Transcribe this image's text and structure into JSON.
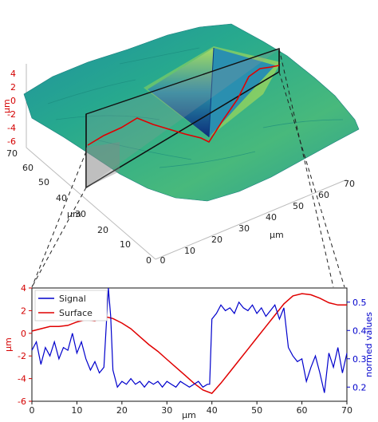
{
  "chart_data": [
    {
      "type": "surface",
      "z_axis": {
        "label": "µm",
        "ticks": [
          "4",
          "2",
          "0",
          "-2",
          "-4",
          "-6"
        ],
        "color": "#d40000"
      },
      "y_axis": {
        "ticks": [
          "70",
          "60",
          "50",
          "40",
          "30",
          "20",
          "10",
          "0"
        ]
      },
      "y_label": "µm",
      "x_axis": {
        "label": "µm",
        "ticks": [
          "0",
          "10",
          "20",
          "30",
          "40",
          "50",
          "60",
          "70"
        ]
      },
      "colormap": [
        "#0b2f7a",
        "#1d6aa6",
        "#15a39a",
        "#56c27a",
        "#c8e64a"
      ],
      "cut_line_color": "#e00000"
    },
    {
      "type": "line",
      "xlabel": "µm",
      "ylabel_left": "µm",
      "ylabel_right": "normed values",
      "xlim": [
        0,
        70
      ],
      "ylim_left": [
        -6,
        4
      ],
      "ylim_right": [
        0.15,
        0.55
      ],
      "x_ticks": [
        "0",
        "10",
        "20",
        "30",
        "40",
        "50",
        "60",
        "70"
      ],
      "y_ticks_left": [
        "4",
        "2",
        "0",
        "-2",
        "-4",
        "-6"
      ],
      "y_ticks_right": [
        "0.5",
        "0.4",
        "0.3",
        "0.2"
      ],
      "legend_position": "upper-left",
      "series": [
        {
          "name": "Signal",
          "color": "#0000cc",
          "axis": "right",
          "x": [
            0,
            1,
            2,
            3,
            4,
            5,
            6,
            7,
            8,
            9,
            10,
            11,
            12,
            13,
            14,
            15,
            16,
            17,
            17.5,
            18,
            19,
            20,
            21,
            22,
            23,
            24,
            25,
            26,
            27,
            28,
            29,
            30,
            31,
            32,
            33,
            34,
            35,
            36,
            37,
            38,
            39,
            39.5,
            40,
            41,
            42,
            43,
            44,
            45,
            46,
            47,
            48,
            49,
            50,
            51,
            52,
            53,
            54,
            55,
            56,
            57,
            58,
            59,
            60,
            61,
            62,
            63,
            64,
            65,
            66,
            67,
            68,
            69,
            70
          ],
          "y": [
            0.33,
            0.36,
            0.28,
            0.34,
            0.31,
            0.36,
            0.3,
            0.34,
            0.33,
            0.39,
            0.32,
            0.36,
            0.3,
            0.26,
            0.29,
            0.25,
            0.27,
            0.55,
            0.45,
            0.26,
            0.2,
            0.22,
            0.21,
            0.23,
            0.21,
            0.22,
            0.2,
            0.22,
            0.21,
            0.22,
            0.2,
            0.22,
            0.21,
            0.2,
            0.22,
            0.21,
            0.2,
            0.21,
            0.22,
            0.2,
            0.21,
            0.21,
            0.44,
            0.46,
            0.49,
            0.47,
            0.48,
            0.46,
            0.5,
            0.48,
            0.47,
            0.49,
            0.46,
            0.48,
            0.45,
            0.47,
            0.49,
            0.44,
            0.48,
            0.34,
            0.31,
            0.29,
            0.3,
            0.22,
            0.27,
            0.31,
            0.25,
            0.18,
            0.32,
            0.27,
            0.34,
            0.25,
            0.32
          ]
        },
        {
          "name": "Surface",
          "color": "#e00000",
          "axis": "left",
          "x": [
            0,
            2,
            4,
            6,
            8,
            10,
            12,
            14,
            16,
            18,
            20,
            22,
            24,
            26,
            28,
            30,
            32,
            34,
            36,
            38,
            40,
            42,
            44,
            46,
            48,
            50,
            52,
            54,
            56,
            58,
            60,
            62,
            64,
            66,
            68,
            70
          ],
          "y": [
            0.2,
            0.4,
            0.6,
            0.6,
            0.7,
            1.0,
            1.2,
            1.1,
            1.5,
            1.3,
            0.9,
            0.4,
            -0.3,
            -1.0,
            -1.6,
            -2.3,
            -3.0,
            -3.7,
            -4.4,
            -5.0,
            -5.3,
            -4.4,
            -3.4,
            -2.4,
            -1.4,
            -0.4,
            0.6,
            1.6,
            2.6,
            3.3,
            3.5,
            3.4,
            3.1,
            2.7,
            2.5,
            2.5
          ]
        }
      ]
    }
  ]
}
